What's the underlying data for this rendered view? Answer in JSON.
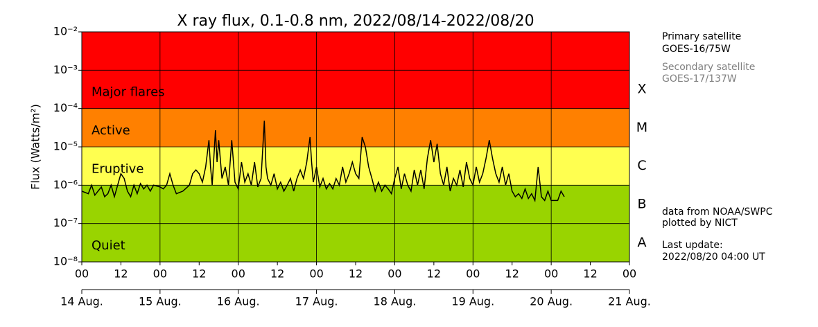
{
  "chart_data": {
    "type": "line",
    "title": "X ray flux, 0.1-0.8 nm, 2022/08/14-2022/08/20",
    "y_label": "Flux (Watts/m²)",
    "ylog": true,
    "ylim": [
      1e-08,
      0.01
    ],
    "yticks": [
      {
        "value": 0.01,
        "label": "10⁻²"
      },
      {
        "value": 0.001,
        "label": "10⁻³"
      },
      {
        "value": 0.0001,
        "label": "10⁻⁴"
      },
      {
        "value": 1e-05,
        "label": "10⁻⁵"
      },
      {
        "value": 1e-06,
        "label": "10⁻⁶"
      },
      {
        "value": 1e-07,
        "label": "10⁻⁷"
      },
      {
        "value": 1e-08,
        "label": "10⁻⁸"
      }
    ],
    "xlim": [
      0,
      168
    ],
    "xticks": [
      {
        "value": 0,
        "label": "00"
      },
      {
        "value": 12,
        "label": "12"
      },
      {
        "value": 24,
        "label": "00"
      },
      {
        "value": 36,
        "label": "12"
      },
      {
        "value": 48,
        "label": "00"
      },
      {
        "value": 60,
        "label": "12"
      },
      {
        "value": 72,
        "label": "00"
      },
      {
        "value": 84,
        "label": "12"
      },
      {
        "value": 96,
        "label": "00"
      },
      {
        "value": 108,
        "label": "12"
      },
      {
        "value": 120,
        "label": "00"
      },
      {
        "value": 132,
        "label": "12"
      },
      {
        "value": 144,
        "label": "00"
      },
      {
        "value": 156,
        "label": "12"
      },
      {
        "value": 168,
        "label": "00"
      }
    ],
    "date_ticks": [
      {
        "value": 0,
        "label": "14 Aug."
      },
      {
        "value": 24,
        "label": "15 Aug."
      },
      {
        "value": 48,
        "label": "16 Aug."
      },
      {
        "value": 72,
        "label": "17 Aug."
      },
      {
        "value": 96,
        "label": "18 Aug."
      },
      {
        "value": 120,
        "label": "19 Aug."
      },
      {
        "value": 144,
        "label": "20 Aug."
      },
      {
        "value": 168,
        "label": "21 Aug."
      }
    ],
    "grid": true,
    "bands": [
      {
        "label": "Major flares",
        "from": 0.0001,
        "to": 0.01,
        "color": "#ff0000"
      },
      {
        "label": "Active",
        "from": 1e-05,
        "to": 0.0001,
        "color": "#ff8000"
      },
      {
        "label": "Eruptive",
        "from": 1e-06,
        "to": 1e-05,
        "color": "#ffff50"
      },
      {
        "label": "Quiet",
        "from": 1e-08,
        "to": 1e-06,
        "color": "#99d400"
      }
    ],
    "flare_classes": [
      {
        "label": "X",
        "from": 0.0001,
        "to": 0.001
      },
      {
        "label": "M",
        "from": 1e-05,
        "to": 0.0001
      },
      {
        "label": "C",
        "from": 1e-06,
        "to": 1e-05
      },
      {
        "label": "B",
        "from": 1e-07,
        "to": 1e-06
      },
      {
        "label": "A",
        "from": 1e-08,
        "to": 1e-07
      }
    ],
    "primary_label": "Primary satellite",
    "primary_satellite": "GOES-16/75W",
    "secondary_label": "Secondary satellite",
    "secondary_satellite": "GOES-17/137W",
    "source": "data from NOAA/SWPC",
    "plotted_by": "plotted by NICT",
    "update_label": "Last update:",
    "update_time": "2022/08/20 04:00 UT",
    "series": [
      {
        "color": "#000000",
        "x": [
          0,
          2,
          3,
          4,
          6,
          7,
          8,
          9,
          10,
          12,
          13,
          14,
          15,
          16,
          17,
          18,
          19,
          20,
          21,
          22,
          24,
          25,
          26,
          27,
          28,
          29,
          31,
          33,
          34,
          35,
          36,
          37,
          38,
          39,
          39.5,
          40,
          41,
          41.5,
          42,
          43,
          44,
          45,
          46,
          47,
          48,
          49,
          50,
          51,
          52,
          53,
          54,
          55,
          56,
          56.5,
          57,
          58,
          59,
          60,
          61,
          62,
          63,
          64,
          65,
          66,
          67,
          68,
          69,
          70,
          70.5,
          71,
          72,
          73,
          74,
          75,
          76,
          77,
          78,
          79,
          80,
          81,
          82,
          83,
          84,
          85,
          86,
          87,
          88,
          89,
          90,
          91,
          92,
          93,
          94,
          95,
          96,
          97,
          98,
          99,
          100,
          101,
          102,
          103,
          104,
          105,
          106,
          107,
          108,
          109,
          110,
          111,
          112,
          113,
          114,
          115,
          116,
          117,
          118,
          119,
          120,
          121,
          122,
          123,
          124,
          125,
          126,
          127,
          128,
          129,
          130,
          131,
          132,
          133,
          134,
          135,
          136,
          137,
          138,
          139,
          140,
          141,
          142,
          143,
          144,
          145,
          146,
          147,
          148
        ],
        "values": [
          7e-07,
          6e-07,
          1e-06,
          5.5e-07,
          9e-07,
          5e-07,
          6e-07,
          1e-06,
          5e-07,
          2e-06,
          1.5e-06,
          7e-07,
          5e-07,
          1e-06,
          6e-07,
          1.1e-06,
          8e-07,
          1e-06,
          7e-07,
          1e-06,
          9e-07,
          8e-07,
          1e-06,
          2e-06,
          1e-06,
          6e-07,
          7e-07,
          1e-06,
          2e-06,
          2.5e-06,
          2e-06,
          1.2e-06,
          3e-06,
          1.5e-05,
          3e-06,
          1e-06,
          2.7e-05,
          4e-06,
          1.5e-05,
          1.5e-06,
          3e-06,
          1e-06,
          1.5e-05,
          1.2e-06,
          8e-07,
          4e-06,
          1.2e-06,
          2e-06,
          1e-06,
          4e-06,
          9e-07,
          1.5e-06,
          4.8e-05,
          3e-06,
          1.5e-06,
          1e-06,
          2e-06,
          8e-07,
          1.2e-06,
          7e-07,
          1e-06,
          1.5e-06,
          7e-07,
          1.5e-06,
          2.5e-06,
          1.5e-06,
          4e-06,
          1.8e-05,
          4e-06,
          1.2e-06,
          3e-06,
          9e-07,
          1.5e-06,
          8e-07,
          1.1e-06,
          8e-07,
          1.5e-06,
          1e-06,
          3e-06,
          1.2e-06,
          2e-06,
          4e-06,
          2e-06,
          1.5e-06,
          1.8e-05,
          1e-05,
          3e-06,
          1.5e-06,
          7e-07,
          1.2e-06,
          7e-07,
          1e-06,
          8e-07,
          6e-07,
          1.5e-06,
          3e-06,
          8e-07,
          2e-06,
          1e-06,
          7e-07,
          2.5e-06,
          1e-06,
          2.5e-06,
          8e-07,
          5e-06,
          1.5e-05,
          4e-06,
          1.2e-05,
          2e-06,
          1e-06,
          3e-06,
          7e-07,
          1.5e-06,
          1e-06,
          2.5e-06,
          9e-07,
          4e-06,
          1.5e-06,
          1e-06,
          3e-06,
          1.2e-06,
          2e-06,
          5e-06,
          1.5e-05,
          5e-06,
          2e-06,
          1.2e-06,
          3e-06,
          1e-06,
          2e-06,
          7e-07,
          5e-07,
          6e-07,
          4.5e-07,
          8e-07,
          4.5e-07,
          6e-07,
          4e-07,
          3e-06,
          5e-07,
          4e-07,
          7e-07,
          4e-07,
          4e-07,
          4e-07,
          7e-07,
          5e-07
        ]
      }
    ]
  }
}
